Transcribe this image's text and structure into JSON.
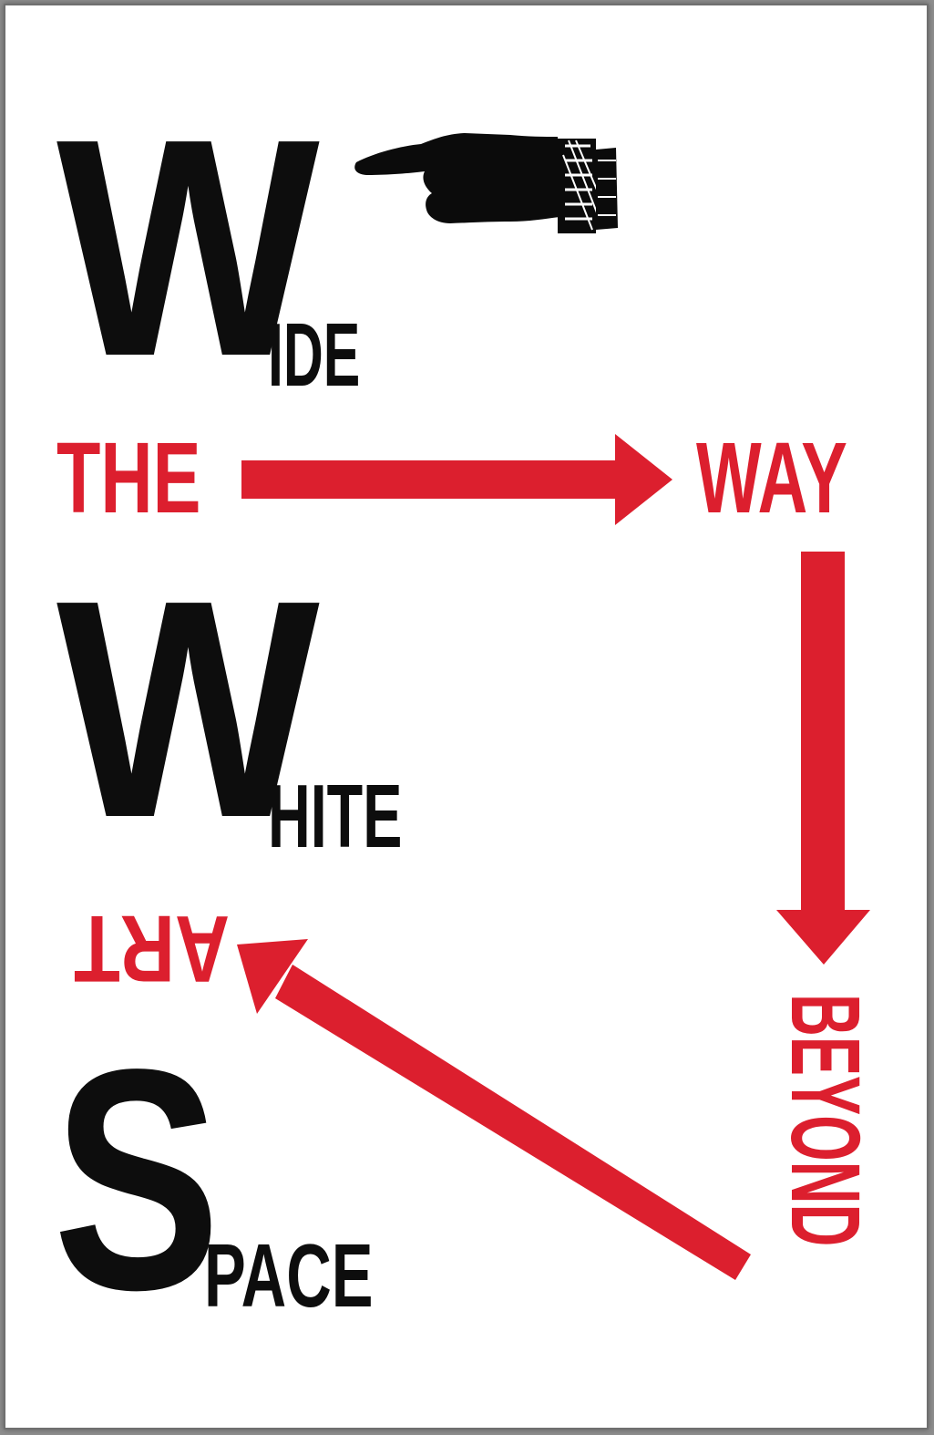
{
  "colors": {
    "accent": "#dc1f2e",
    "ink": "#0d0d0d",
    "paper": "#ffffff"
  },
  "icons": {
    "pointing_hand": "pointing-hand-icon",
    "arrows": [
      "arrow-right-icon",
      "arrow-down-icon",
      "arrow-up-left-icon"
    ]
  },
  "title": {
    "line1": {
      "initial": "W",
      "rest": "IDE"
    },
    "line2": {
      "initial": "W",
      "rest": "HITE"
    },
    "line3": {
      "initial": "S",
      "rest": "PACE"
    }
  },
  "flow": {
    "the": "THE",
    "way": "WAY",
    "beyond": "BEYOND",
    "art": "ART"
  }
}
